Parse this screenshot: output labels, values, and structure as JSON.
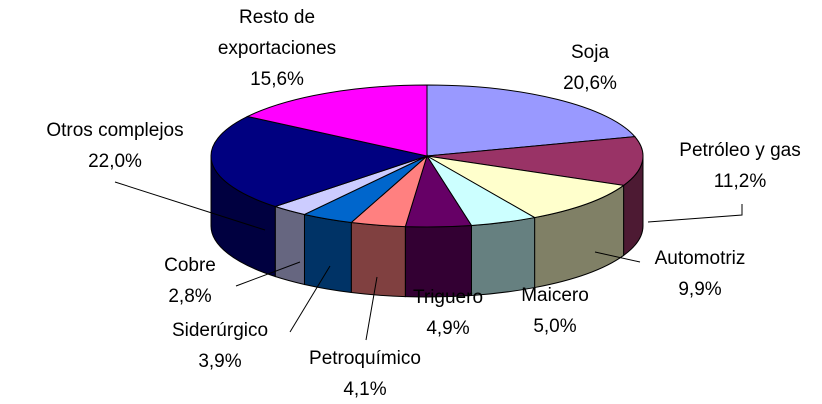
{
  "chart_data": {
    "type": "pie",
    "categories": [
      "Soja",
      "Petróleo y gas",
      "Automotriz",
      "Maicero",
      "Triguero",
      "Petroquímico",
      "Siderúrgico",
      "Cobre",
      "Otros complejos",
      "Resto de exportaciones"
    ],
    "values": [
      20.6,
      11.2,
      9.9,
      5.0,
      4.9,
      4.1,
      3.9,
      2.8,
      22.0,
      15.6
    ],
    "value_labels": [
      "20,6%",
      "11,2%",
      "9,9%",
      "5,0%",
      "4,9%",
      "4,1%",
      "3,9%",
      "2,8%",
      "22,0%",
      "15,6%"
    ],
    "colors": [
      "#9999FF",
      "#993366",
      "#FFFFCC",
      "#CCFFFF",
      "#660066",
      "#FF8080",
      "#0066CC",
      "#CCCCFF",
      "#000080",
      "#FF00FF"
    ]
  }
}
